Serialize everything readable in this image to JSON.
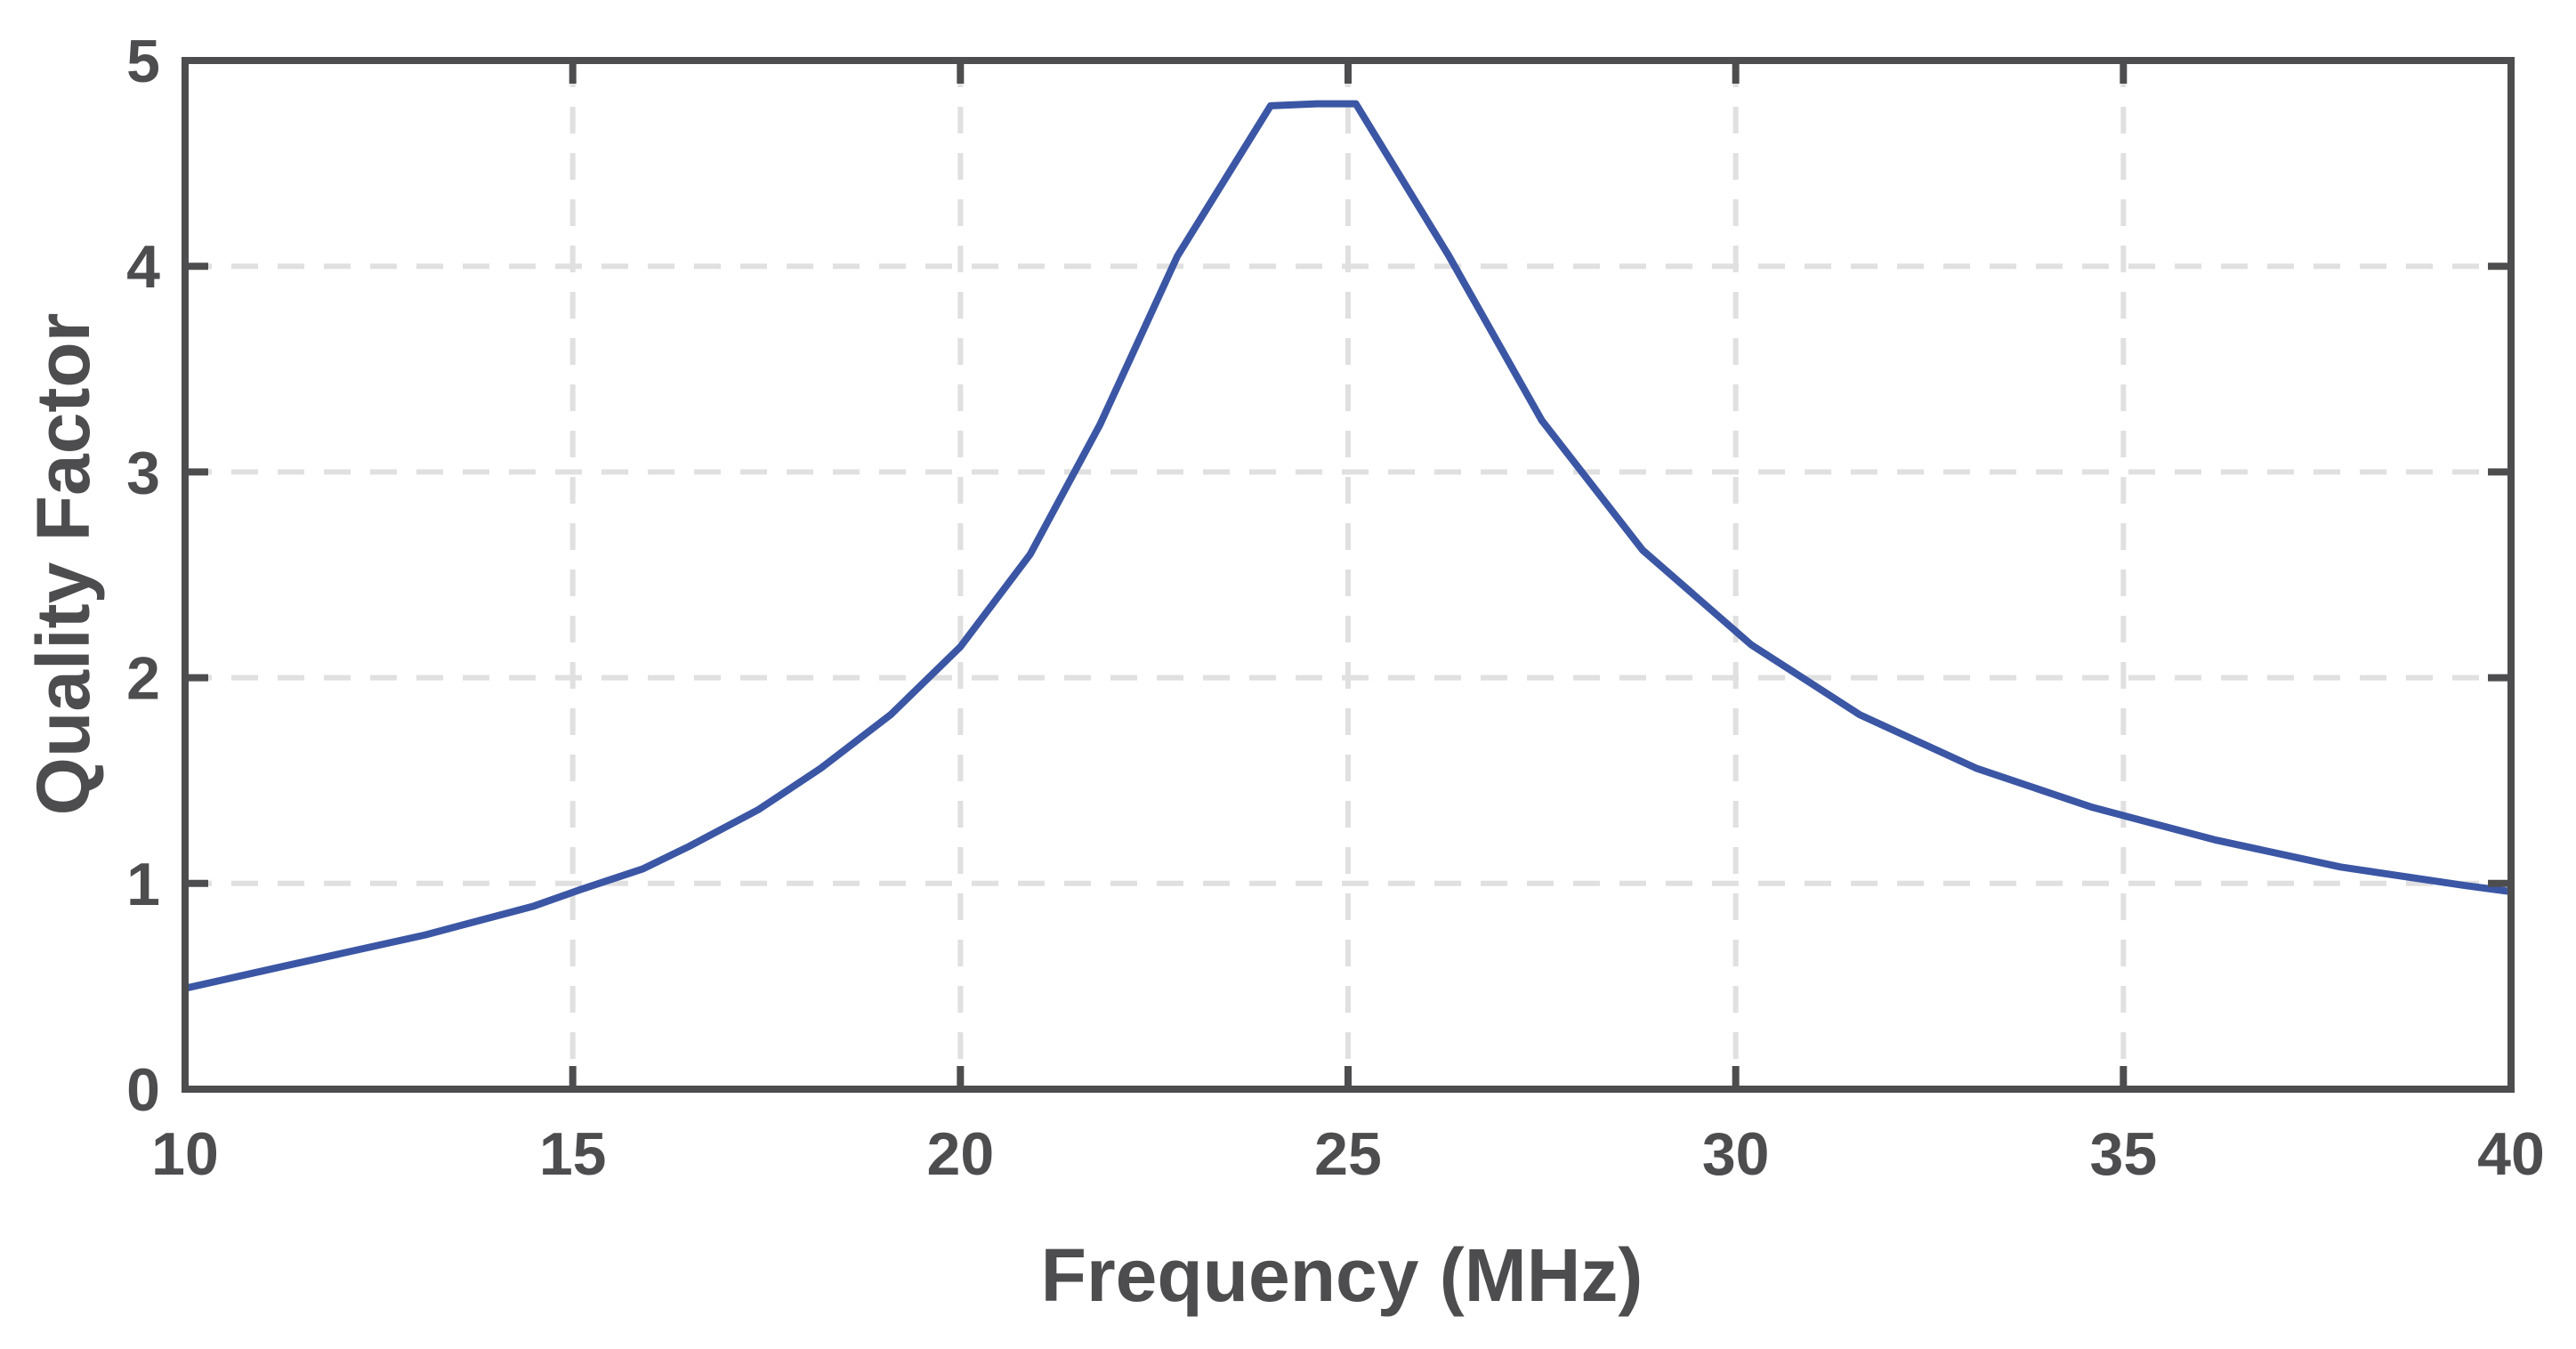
{
  "chart_data": {
    "type": "line",
    "title": "",
    "xlabel": "Frequency (MHz)",
    "ylabel": "Quality Factor",
    "xlim": [
      10,
      40
    ],
    "ylim": [
      0,
      5
    ],
    "xticks": [
      10,
      15,
      20,
      25,
      30,
      35,
      40
    ],
    "yticks": [
      0,
      1,
      2,
      3,
      4,
      5
    ],
    "grid": true,
    "series": [
      {
        "color": "#3b56a4",
        "x": [
          10,
          11.3,
          13.1,
          14.5,
          15.1,
          15.9,
          16.5,
          17.4,
          18.2,
          19.1,
          20.0,
          20.9,
          21.8,
          22.8,
          24.0,
          24.6,
          25.1,
          26.3,
          27.5,
          28.8,
          30.2,
          31.6,
          33.1,
          34.6,
          36.2,
          37.8,
          39.4,
          40
        ],
        "y": [
          0.49,
          0.6,
          0.75,
          0.89,
          0.97,
          1.07,
          1.18,
          1.36,
          1.56,
          1.82,
          2.15,
          2.6,
          3.23,
          4.05,
          4.78,
          4.79,
          4.79,
          4.05,
          3.25,
          2.62,
          2.16,
          1.82,
          1.56,
          1.37,
          1.21,
          1.08,
          0.99,
          0.96
        ]
      }
    ],
    "colors": {
      "axis": "#4d4d4f",
      "grid": "#e0e0e0",
      "line": "#3b56a4"
    }
  }
}
